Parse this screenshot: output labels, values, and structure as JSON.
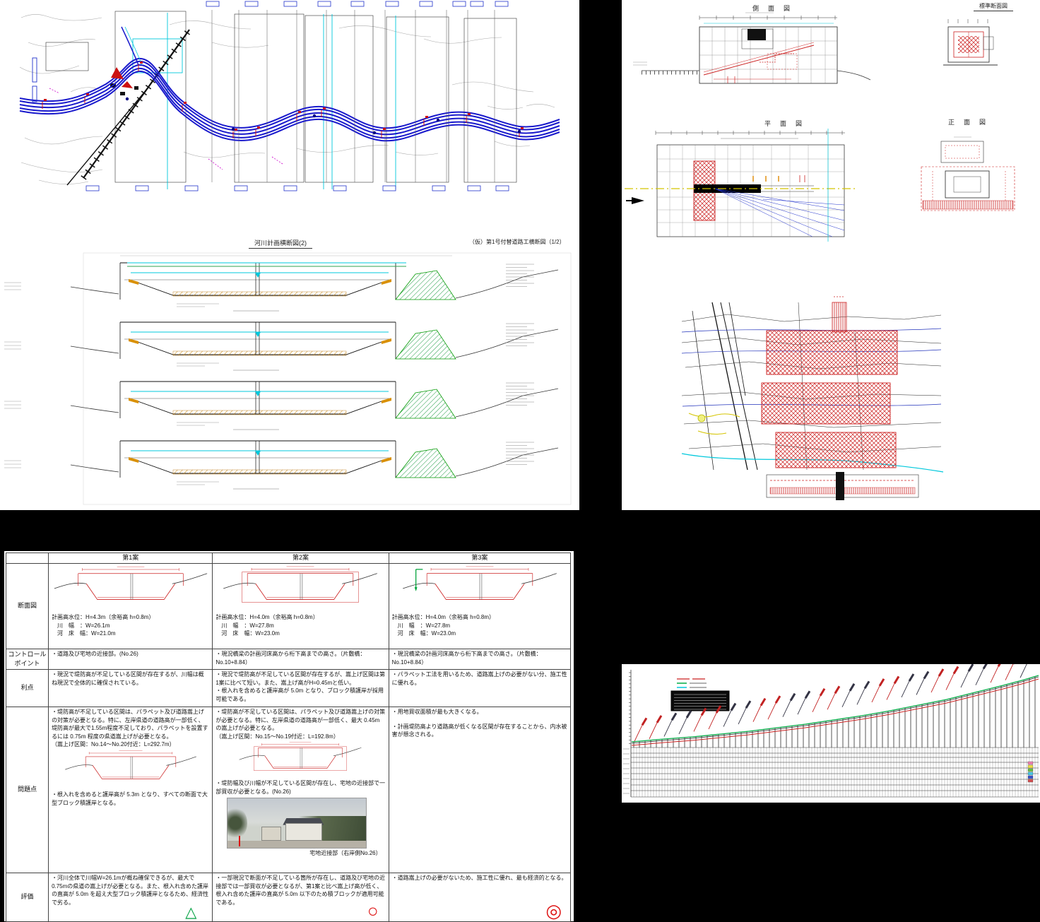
{
  "sheets": {
    "cross_section": {
      "title": "河川計画横断図(2)",
      "subtitle": "（仮）第1号付替道路工横断図（1/2）",
      "section_count": 4
    },
    "structure": {
      "side_view": "側　面　図",
      "standard_section": "標準断面図",
      "plan_view": "平　面　図",
      "front_view": "正　面　図"
    }
  },
  "comparison_table": {
    "columns": {
      "c1": "第1案",
      "c2": "第2案",
      "c3": "第3案"
    },
    "row_labels": {
      "section": "断面図",
      "control_1": "コントロール",
      "control_2": "ポイント",
      "merit": "利点",
      "problem": "問題点",
      "evaluation": "評価"
    },
    "section_row": {
      "c1": {
        "l1": "計画高水位：H=4.3m（余裕高 h=0.8m）",
        "l2": "　川　幅　：W=26.1m",
        "l3": "　河　床　幅：W=21.0m"
      },
      "c2": {
        "l1": "計画高水位：H=4.0m（余裕高 h=0.8m）",
        "l2": "　川　幅　：W=27.8m",
        "l3": "　河　床　幅：W=23.0m"
      },
      "c3": {
        "l1": "計画高水位：H=4.0m（余裕高 h=0.8m）",
        "l2": "　川　幅　：W=27.8m",
        "l3": "　河　床　幅：W=23.0m"
      }
    },
    "control_row": {
      "c1": "・道路及び宅地の近接部。(No.26)",
      "c2": "・現況橋梁の計画河床高から桁下高までの高さ。（片敷橋：No.10+8.84）",
      "c3": "・現況橋梁の計画河床高から桁下高までの高さ。（片敷橋：No.10+8.84）"
    },
    "merit_row": {
      "c1": "・現況で堤防高が不足している区間が存在するが、川幅は概ね現況で全体的に確保されている。",
      "c2_b1": "・現況で堤防高が不足している区間が存在するが、嵩上げ区間は第1案に比べて短い。また、嵩上げ高がH=0.45mと低い。",
      "c2_b2": "・根入れを含めると護岸高が 5.0m となり、ブロック積護岸が採用可能である。",
      "c3": "・パラペット工法を用いるため、道路嵩上げの必要がない分、施工性に優れる。"
    },
    "problem_row": {
      "c1_text": "・堤防高が不足している区間は、パラペット及び道路嵩上げの対策が必要となる。特に、左岸県道の道路高が一部低く、堤防高が最大で1.55m程度不足しており、パラペットを設置するには 0.75m 程度の県道嵩上げが必要となる。",
      "c1_range": "（嵩上げ区間：No.14～No.20付近：L=292.7m）",
      "c1_note": "・根入れを含めると護岸高が 5.3m となり、すべての断面で大型ブロック積護岸となる。",
      "c2_text": "・堤防高が不足している区間は、パラペット及び道路嵩上げの対策が必要となる。特に、左岸県道の道路高が一部低く、最大 0.45m の嵩上げが必要となる。",
      "c2_range": "（嵩上げ区間：No.15～No.19付近：L=192.8m）",
      "c2_note": "・堤防幅及び川幅が不足している区間が存在し、宅地の近接部で一部買収が必要となる。(No.26)",
      "c2_photo_caption": "宅地近接部（右岸側No.26）",
      "c3_b1": "・用地買収面積が最も大きくなる。",
      "c3_b2": "・計画堤防高より道路高が低くなる区間が存在することから、内水被害が懸念される。"
    },
    "evaluation_row": {
      "c1_text": "・河川全体で川幅W=26.1mが概ね確保できるが、最大で0.75mの県道の嵩上げが必要となる。また、根入れ含めた護岸の直高が 5.0m を超え大型ブロック積護岸となるため、経済性で劣る。",
      "c1_symbol": "△",
      "c2_text": "・一部現況で断面が不足している箇所が存在し、道路及び宅地の近接部では一部買収が必要となるが、第1案と比べ嵩上げ高が低く、根入れ含めた護岸の直高が 5.0m 以下のため積ブロックが適用可能である。",
      "c2_symbol": "○",
      "c3_text": "・道路嵩上げの必要がないため、施工性に優れ、最も経済的となる。",
      "c3_symbol": "◎"
    }
  },
  "colors": {
    "background": "#000000",
    "river_blue": "#1a1acc",
    "cyan_line": "#00c8dc",
    "red_hatch": "#cc2222",
    "green_hatch": "#2fa352",
    "orange_hatch": "#cc8400",
    "yellow_line": "#d4c400",
    "eval_triangle": "#00a040",
    "eval_circle": "#dd1111"
  }
}
